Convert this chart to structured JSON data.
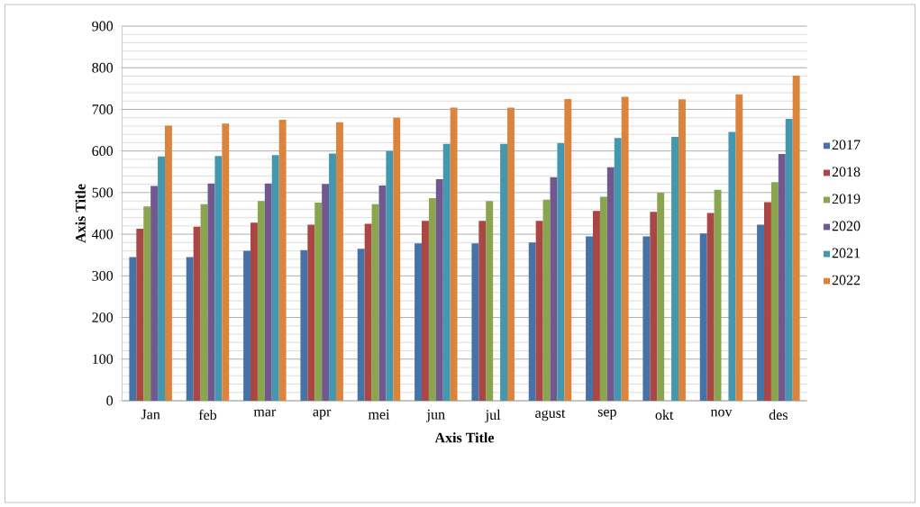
{
  "chart_data": {
    "type": "bar",
    "xlabel": "Axis Title",
    "ylabel": "Axis Title",
    "categories": [
      "Jan",
      "feb",
      "mar",
      "apr",
      "mei",
      "jun",
      "jul",
      "agust",
      "sep",
      "okt",
      "nov",
      "des"
    ],
    "series": [
      {
        "name": "2017",
        "color": "#4572a7",
        "values": [
          345,
          345,
          360,
          362,
          365,
          378,
          378,
          380,
          395,
          395,
          402,
          423
        ]
      },
      {
        "name": "2018",
        "color": "#aa4643",
        "values": [
          413,
          418,
          428,
          423,
          425,
          432,
          432,
          432,
          456,
          454,
          451,
          477
        ]
      },
      {
        "name": "2019",
        "color": "#89a54e",
        "values": [
          467,
          472,
          480,
          476,
          472,
          487,
          480,
          483,
          490,
          500,
          507,
          525
        ]
      },
      {
        "name": "2020",
        "color": "#71588f",
        "values": [
          516,
          522,
          522,
          521,
          517,
          532,
          null,
          537,
          561,
          null,
          null,
          593
        ]
      },
      {
        "name": "2021",
        "color": "#4198af",
        "values": [
          587,
          588,
          590,
          594,
          600,
          617,
          617,
          619,
          631,
          634,
          646,
          677
        ]
      },
      {
        "name": "2022",
        "color": "#db843d",
        "values": [
          661,
          666,
          675,
          669,
          680,
          704,
          704,
          725,
          730,
          724,
          736,
          781
        ]
      }
    ],
    "ylim": [
      0,
      900
    ],
    "yticks": [
      0,
      100,
      200,
      300,
      400,
      500,
      600,
      700,
      800,
      900
    ],
    "grid": "y",
    "legend": "right"
  }
}
